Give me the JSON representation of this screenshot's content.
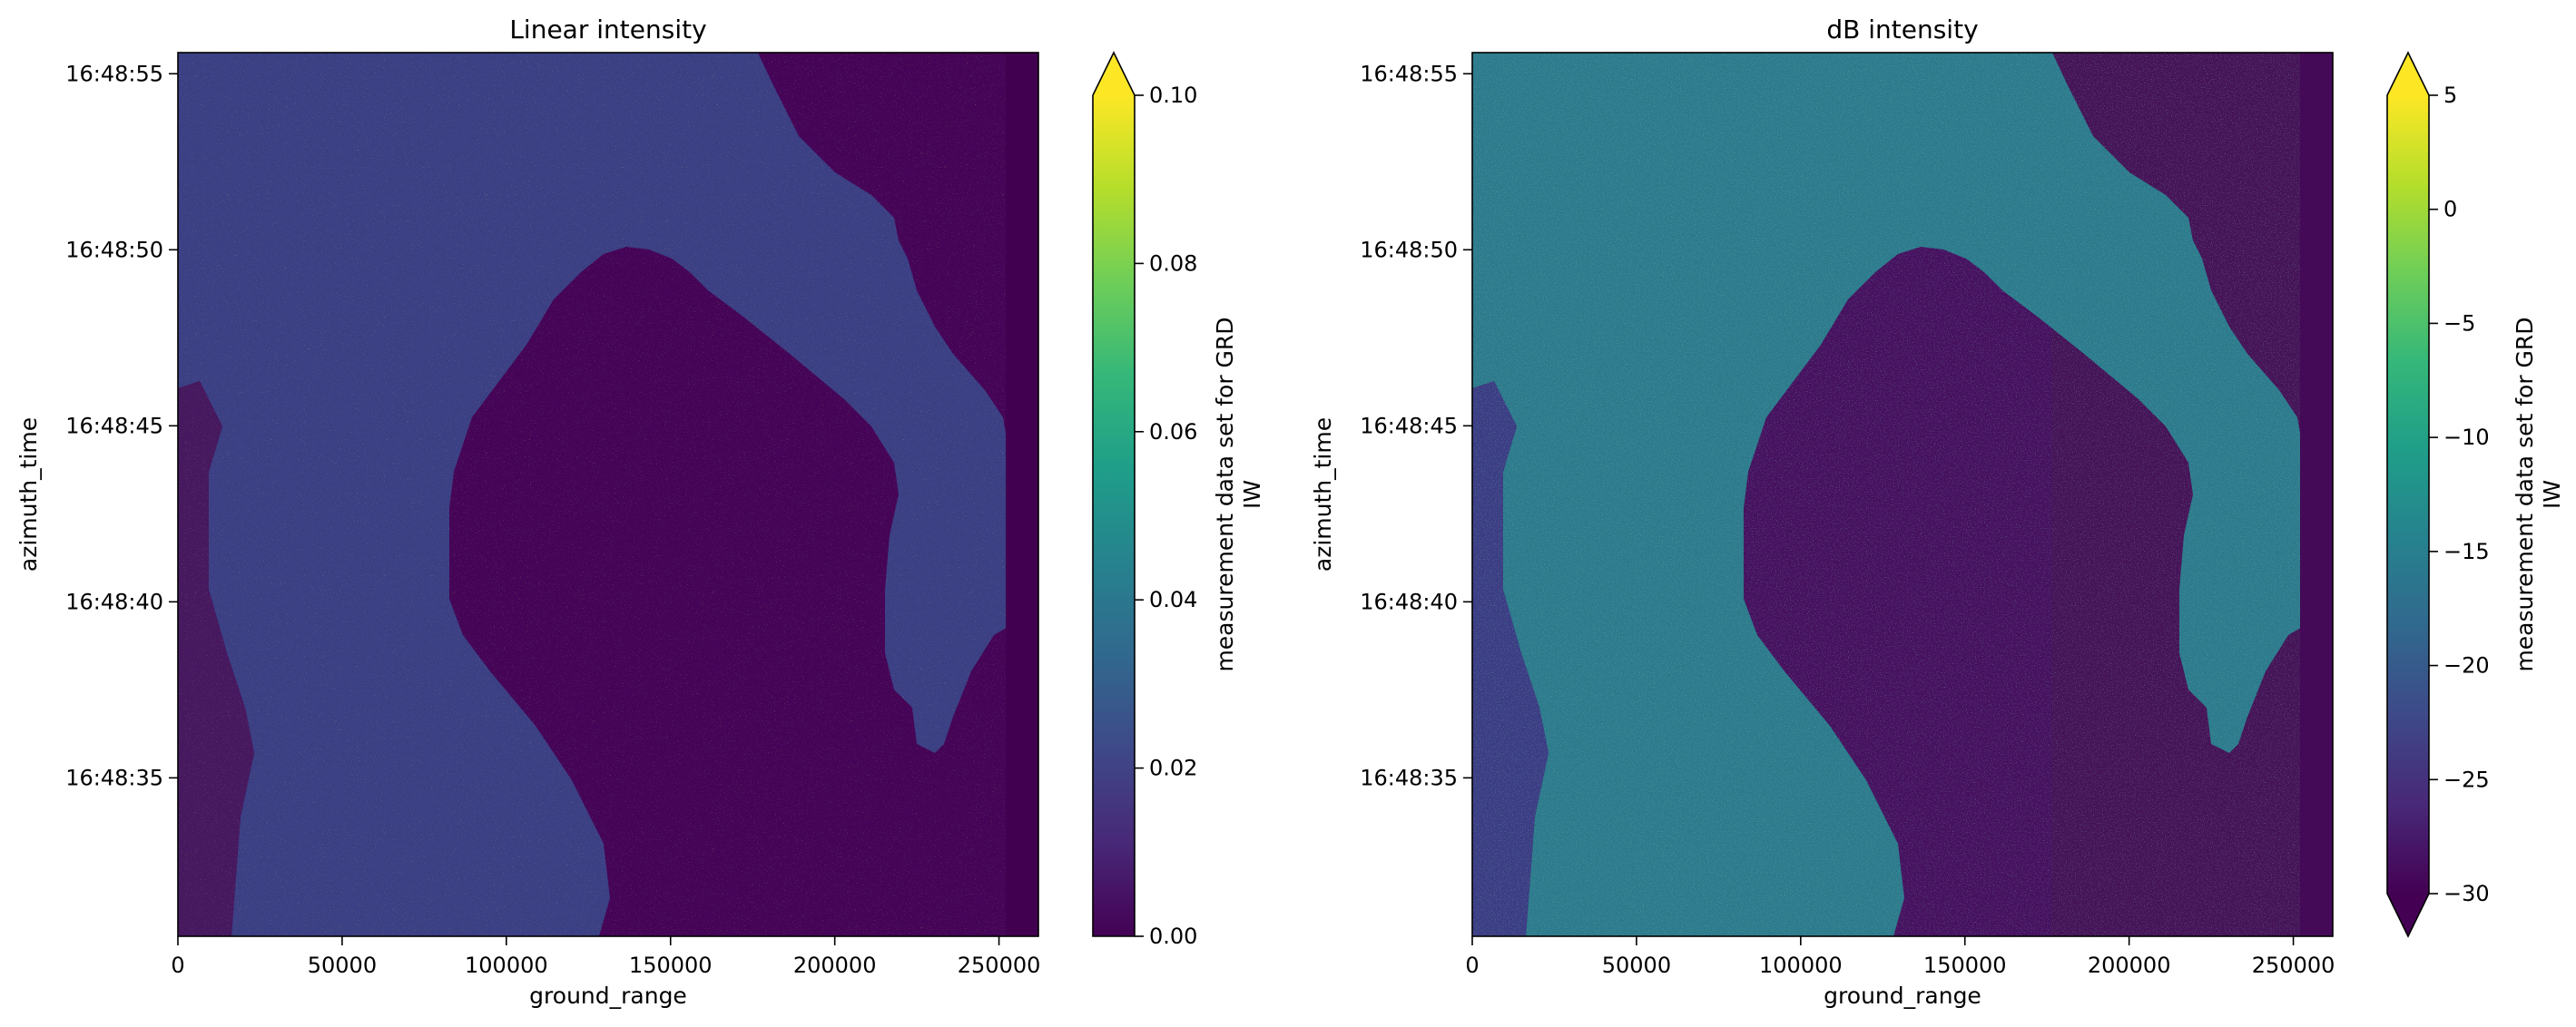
{
  "chart_data": [
    {
      "type": "heatmap",
      "title": "Linear intensity",
      "xlabel": "ground_range",
      "ylabel": "azimuth_time",
      "x_ticks": [
        "0",
        "50000",
        "100000",
        "150000",
        "200000",
        "250000"
      ],
      "x_tick_values": [
        0,
        50000,
        100000,
        150000,
        200000,
        250000
      ],
      "xlim": [
        0,
        262000
      ],
      "y_ticks": [
        "16:48:55",
        "16:48:50",
        "16:48:45",
        "16:48:40",
        "16:48:35"
      ],
      "y_tick_values": [
        55,
        50,
        45,
        40,
        35
      ],
      "ylim": [
        30.5,
        55.6
      ],
      "colorbar": {
        "label_lines": [
          "measurement data set for GRD",
          "IW"
        ],
        "ticks": [
          "0.00",
          "0.02",
          "0.04",
          "0.06",
          "0.08",
          "0.10"
        ],
        "tick_values": [
          0,
          0.02,
          0.04,
          0.06,
          0.08,
          0.1
        ],
        "range": [
          0,
          0.1
        ],
        "extend": "max",
        "colormap": "viridis"
      },
      "image_description_levels": {
        "sea": 0.0,
        "land": 0.03
      }
    },
    {
      "type": "heatmap",
      "title": "dB intensity",
      "xlabel": "ground_range",
      "ylabel": "azimuth_time",
      "x_ticks": [
        "0",
        "50000",
        "100000",
        "150000",
        "200000",
        "250000"
      ],
      "x_tick_values": [
        0,
        50000,
        100000,
        150000,
        200000,
        250000
      ],
      "xlim": [
        0,
        262000
      ],
      "y_ticks": [
        "16:48:55",
        "16:48:50",
        "16:48:45",
        "16:48:40",
        "16:48:35"
      ],
      "y_tick_values": [
        55,
        50,
        45,
        40,
        35
      ],
      "ylim": [
        30.5,
        55.6
      ],
      "colorbar": {
        "label_lines": [
          "measurement data set for GRD",
          "IW"
        ],
        "ticks": [
          "5",
          "0",
          "−5",
          "−10",
          "−15",
          "−20",
          "−25",
          "−30"
        ],
        "tick_values": [
          5,
          0,
          -5,
          -10,
          -15,
          -20,
          -25,
          -30
        ],
        "range": [
          -30,
          5
        ],
        "extend": "both",
        "colormap": "viridis"
      }
    }
  ],
  "colors": {
    "viridis": [
      "#440154",
      "#482878",
      "#3e4989",
      "#31688e",
      "#26828e",
      "#1f9e89",
      "#35b779",
      "#6ece58",
      "#b5de2b",
      "#fde725"
    ],
    "linear_sea": "#450457",
    "linear_land": "#3b3f84",
    "db_sea": "#46105f",
    "db_land": "#2c7a8c",
    "db_far_sea": "#451257"
  }
}
